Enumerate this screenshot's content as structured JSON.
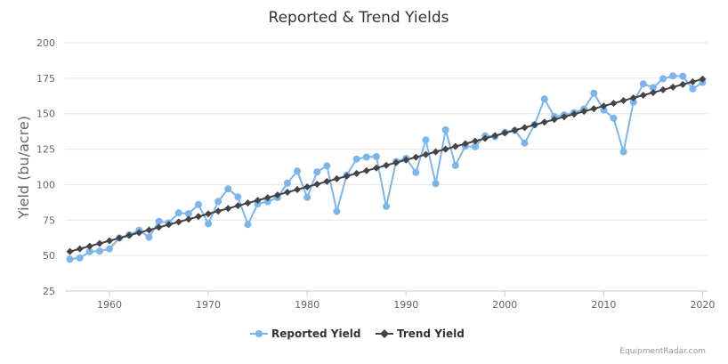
{
  "chart_data": {
    "type": "line",
    "title": "Reported & Trend Yields",
    "ylabel": "Yield (bu/acre)",
    "xlabel": "",
    "xlim": [
      1955.5,
      2020.5
    ],
    "ylim": [
      25,
      200
    ],
    "x_ticks": [
      1960,
      1970,
      1980,
      1990,
      2000,
      2010,
      2020
    ],
    "y_ticks": [
      25,
      50,
      75,
      100,
      125,
      150,
      175,
      200
    ],
    "grid": "horizontal",
    "legend_position": "bottom",
    "x": [
      1956,
      1957,
      1958,
      1959,
      1960,
      1961,
      1962,
      1963,
      1964,
      1965,
      1966,
      1967,
      1968,
      1969,
      1970,
      1971,
      1972,
      1973,
      1974,
      1975,
      1976,
      1977,
      1978,
      1979,
      1980,
      1981,
      1982,
      1983,
      1984,
      1985,
      1986,
      1987,
      1988,
      1989,
      1990,
      1991,
      1992,
      1993,
      1994,
      1995,
      1996,
      1997,
      1998,
      1999,
      2000,
      2001,
      2002,
      2003,
      2004,
      2005,
      2006,
      2007,
      2008,
      2009,
      2010,
      2011,
      2012,
      2013,
      2014,
      2015,
      2016,
      2017,
      2018,
      2019,
      2020
    ],
    "series": [
      {
        "name": "Reported Yield",
        "color": "#7cb5ec",
        "marker": "circle",
        "values": [
          47.4,
          48.3,
          52.8,
          53.1,
          54.7,
          62.4,
          64.7,
          67.9,
          62.9,
          74.1,
          73.1,
          80.1,
          79.5,
          85.9,
          72.4,
          88.1,
          97.0,
          91.3,
          71.9,
          86.4,
          88.0,
          90.8,
          101.0,
          109.5,
          91.0,
          108.9,
          113.2,
          81.1,
          106.7,
          118.0,
          119.4,
          119.8,
          84.6,
          116.3,
          118.5,
          108.6,
          131.5,
          100.7,
          138.6,
          113.5,
          127.1,
          126.7,
          134.4,
          133.8,
          136.9,
          138.2,
          129.3,
          142.2,
          160.3,
          147.9,
          149.1,
          150.7,
          153.3,
          164.4,
          152.6,
          146.8,
          123.1,
          158.1,
          171.0,
          168.4,
          174.6,
          176.6,
          176.4,
          167.5,
          172.0
        ]
      },
      {
        "name": "Trend Yield",
        "color": "#434348",
        "marker": "diamond",
        "values": [
          52.8,
          54.7,
          56.6,
          58.5,
          60.4,
          62.3,
          64.2,
          66.1,
          68.0,
          69.9,
          71.8,
          73.7,
          75.6,
          77.5,
          79.4,
          81.3,
          83.2,
          85.1,
          87.0,
          88.9,
          90.8,
          92.7,
          94.6,
          96.5,
          98.4,
          100.3,
          102.2,
          104.1,
          106.0,
          107.9,
          109.8,
          111.7,
          113.6,
          115.5,
          117.4,
          119.3,
          121.2,
          123.1,
          125.0,
          126.9,
          128.8,
          130.7,
          132.6,
          134.5,
          136.4,
          138.3,
          140.2,
          142.1,
          144.0,
          145.9,
          147.8,
          149.7,
          151.6,
          153.5,
          155.4,
          157.3,
          159.2,
          161.1,
          163.0,
          164.9,
          166.8,
          168.7,
          170.6,
          172.5,
          174.4
        ]
      }
    ]
  },
  "legend": {
    "items": [
      {
        "label": "Reported Yield",
        "color": "#7cb5ec",
        "marker": "circle"
      },
      {
        "label": "Trend Yield",
        "color": "#434348",
        "marker": "diamond"
      }
    ]
  },
  "credit": "EquipmentRadar.com"
}
